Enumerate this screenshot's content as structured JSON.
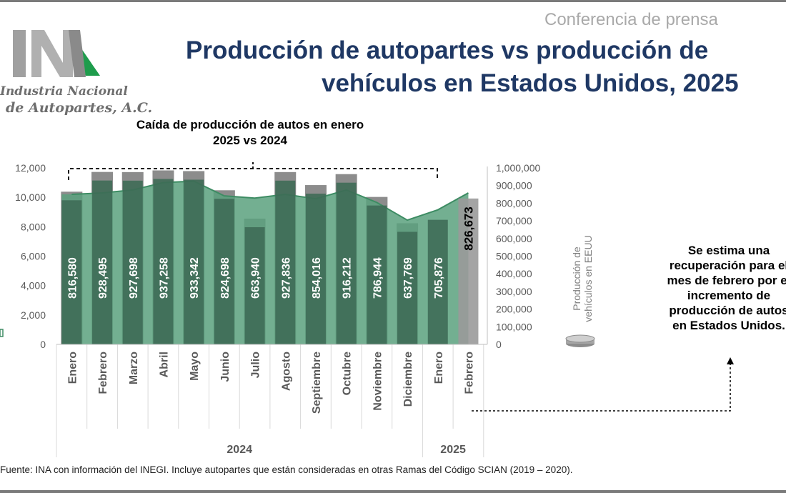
{
  "header": {
    "conference": "Conferencia de prensa",
    "title_line1": "Producción de autopartes vs producción de",
    "title_line2": "vehículos en Estados Unidos, 2025"
  },
  "logo": {
    "mark": "INA",
    "line1": "Industria Nacional",
    "line2": "de Autopartes, A.C."
  },
  "annotations": {
    "top": "Caída de producción de autos en enero 2025 vs 2024",
    "right": "Se estima una recuperación para el mes de febrero por el incremento de producción de autos en Estados Unidos."
  },
  "source": "Fuente: INA con información del INEGI. Incluye autopartes que están consideradas en otras Ramas del Código SCIAN (2019 – 2020).",
  "colors": {
    "title": "#1f3864",
    "area": "#5ba17e",
    "area_line": "#3d8c63",
    "bar_fill": "#3d6b55",
    "bar_gray": "#8c8c8c",
    "logo_green": "#1e9c4c",
    "logo_gray": "#9a9a9a"
  },
  "chart_data": {
    "type": "bar",
    "categories": [
      "Enero",
      "Febrero",
      "Marzo",
      "Abril",
      "Mayo",
      "Junio",
      "Julio",
      "Agosto",
      "Septiembre",
      "Octubre",
      "Noviembre",
      "Diciembre",
      "Enero",
      "Febrero"
    ],
    "year_groups": [
      {
        "label": "2024",
        "count": 12
      },
      {
        "label": "2025",
        "count": 2
      }
    ],
    "series": [
      {
        "name": "Producción de vehículos en EEUU",
        "axis": "right",
        "values": [
          816580,
          928495,
          927698,
          937258,
          933342,
          824698,
          663940,
          927836,
          854016,
          916212,
          786944,
          637769,
          705876,
          826673
        ]
      },
      {
        "axis": "left",
        "type": "area",
        "values": [
          10200,
          10300,
          10500,
          11000,
          11100,
          10100,
          9950,
          10200,
          9900,
          10500,
          9650,
          8450,
          9150,
          10300
        ]
      }
    ],
    "left_axis": {
      "ylim": [
        0,
        12000
      ],
      "ticks": [
        "0",
        "2,000",
        "4,000",
        "6,000",
        "8,000",
        "10,000",
        "12,000"
      ]
    },
    "right_axis": {
      "ylim": [
        0,
        1000000
      ],
      "ticks": [
        "0",
        "100,000",
        "200,000",
        "300,000",
        "400,000",
        "500,000",
        "600,000",
        "700,000",
        "800,000",
        "900,000",
        "1,000,000"
      ]
    },
    "value_labels": [
      "816,580",
      "928,495",
      "927,698",
      "937,258",
      "933,342",
      "824,698",
      "663,940",
      "927,836",
      "854,016",
      "916,212",
      "786,944",
      "637,769",
      "705,876",
      "826,673"
    ],
    "legend": {
      "label": "Producción de vehículos en EEUU",
      "position": "right"
    }
  }
}
